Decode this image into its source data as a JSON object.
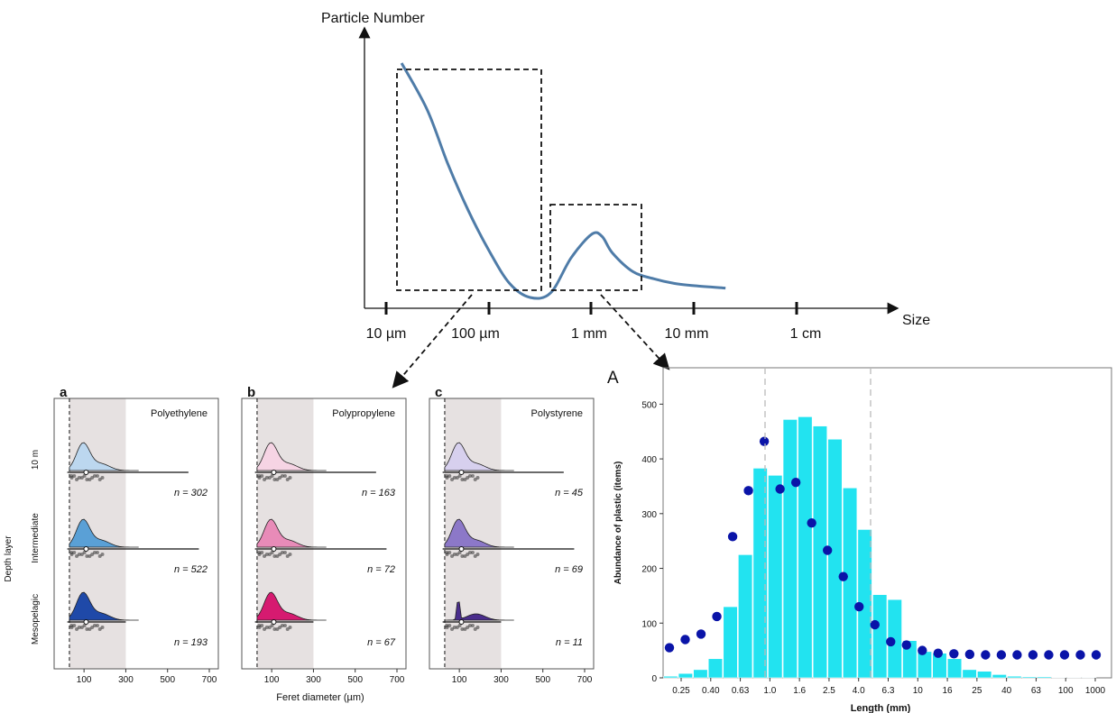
{
  "chart_data": [
    {
      "type": "line",
      "ylabel": "Particle Number",
      "xlabel": "Size",
      "x_ticks": [
        "10 µm",
        "100 µm",
        "1 mm",
        "10 mm",
        "1 cm"
      ],
      "curve": {
        "x_log10_um": [
          1.15,
          1.4,
          1.6,
          1.8,
          2.0,
          2.2,
          2.4,
          2.6,
          2.8,
          3.0,
          3.1,
          3.2,
          3.4,
          3.6,
          3.8,
          4.0,
          4.3
        ],
        "y": [
          1.0,
          0.8,
          0.57,
          0.37,
          0.2,
          0.06,
          0.0,
          0.02,
          0.17,
          0.27,
          0.26,
          0.19,
          0.11,
          0.08,
          0.06,
          0.05,
          0.04
        ]
      }
    },
    {
      "type": "ridgeline",
      "panels": [
        {
          "letter": "a",
          "polymer": "Polyethylene",
          "layers": [
            {
              "n_label": "n = 302",
              "color": "#bcd7ef"
            },
            {
              "n_label": "n = 522",
              "color": "#5aa0d6"
            },
            {
              "n_label": "n = 193",
              "color": "#1f49a8"
            }
          ]
        },
        {
          "letter": "b",
          "polymer": "Polypropylene",
          "layers": [
            {
              "n_label": "n = 163",
              "color": "#f6d4e4"
            },
            {
              "n_label": "n = 72",
              "color": "#e88bb8"
            },
            {
              "n_label": "n = 67",
              "color": "#d61a70"
            }
          ]
        },
        {
          "letter": "c",
          "polymer": "Polystyrene",
          "layers": [
            {
              "n_label": "n = 45",
              "color": "#d7d0ee"
            },
            {
              "n_label": "n = 69",
              "color": "#8c78c8"
            },
            {
              "n_label": "n = 11",
              "color": "#4a2d8c"
            }
          ]
        }
      ],
      "layer_names": [
        "10 m",
        "Intermediate",
        "Mesopelagic"
      ],
      "ylabel": "Depth layer",
      "xlabel": "Feret diameter (µm)",
      "x_ticks": [
        "100",
        "300",
        "500",
        "700"
      ]
    },
    {
      "type": "bar",
      "panel_letter": "A",
      "xlabel": "Length (mm)",
      "ylabel": "Abundance of plastic (items)",
      "ylim": [
        0,
        550
      ],
      "y_ticks": [
        "0",
        "100",
        "200",
        "300",
        "400",
        "500"
      ],
      "x_ticks": [
        "0.25",
        "0.40",
        "0.63",
        "1.0",
        "1.6",
        "2.5",
        "4.0",
        "6.3",
        "10",
        "16",
        "25",
        "40",
        "63",
        "100",
        "1000"
      ],
      "bar_color": "#22e3f0",
      "point_color": "#0a14a8",
      "values": [
        3,
        8,
        15,
        35,
        130,
        225,
        383,
        370,
        472,
        477,
        460,
        436,
        347,
        271,
        152,
        143,
        68,
        48,
        45,
        35,
        15,
        12,
        6,
        3,
        2,
        2,
        1,
        1,
        1,
        0
      ],
      "points": [
        55,
        70,
        80,
        112,
        258,
        342,
        432,
        345,
        357,
        283,
        233,
        185,
        130,
        97,
        66,
        60,
        50,
        45,
        44,
        43,
        42,
        42,
        42,
        42,
        42,
        42,
        42,
        42
      ]
    }
  ]
}
